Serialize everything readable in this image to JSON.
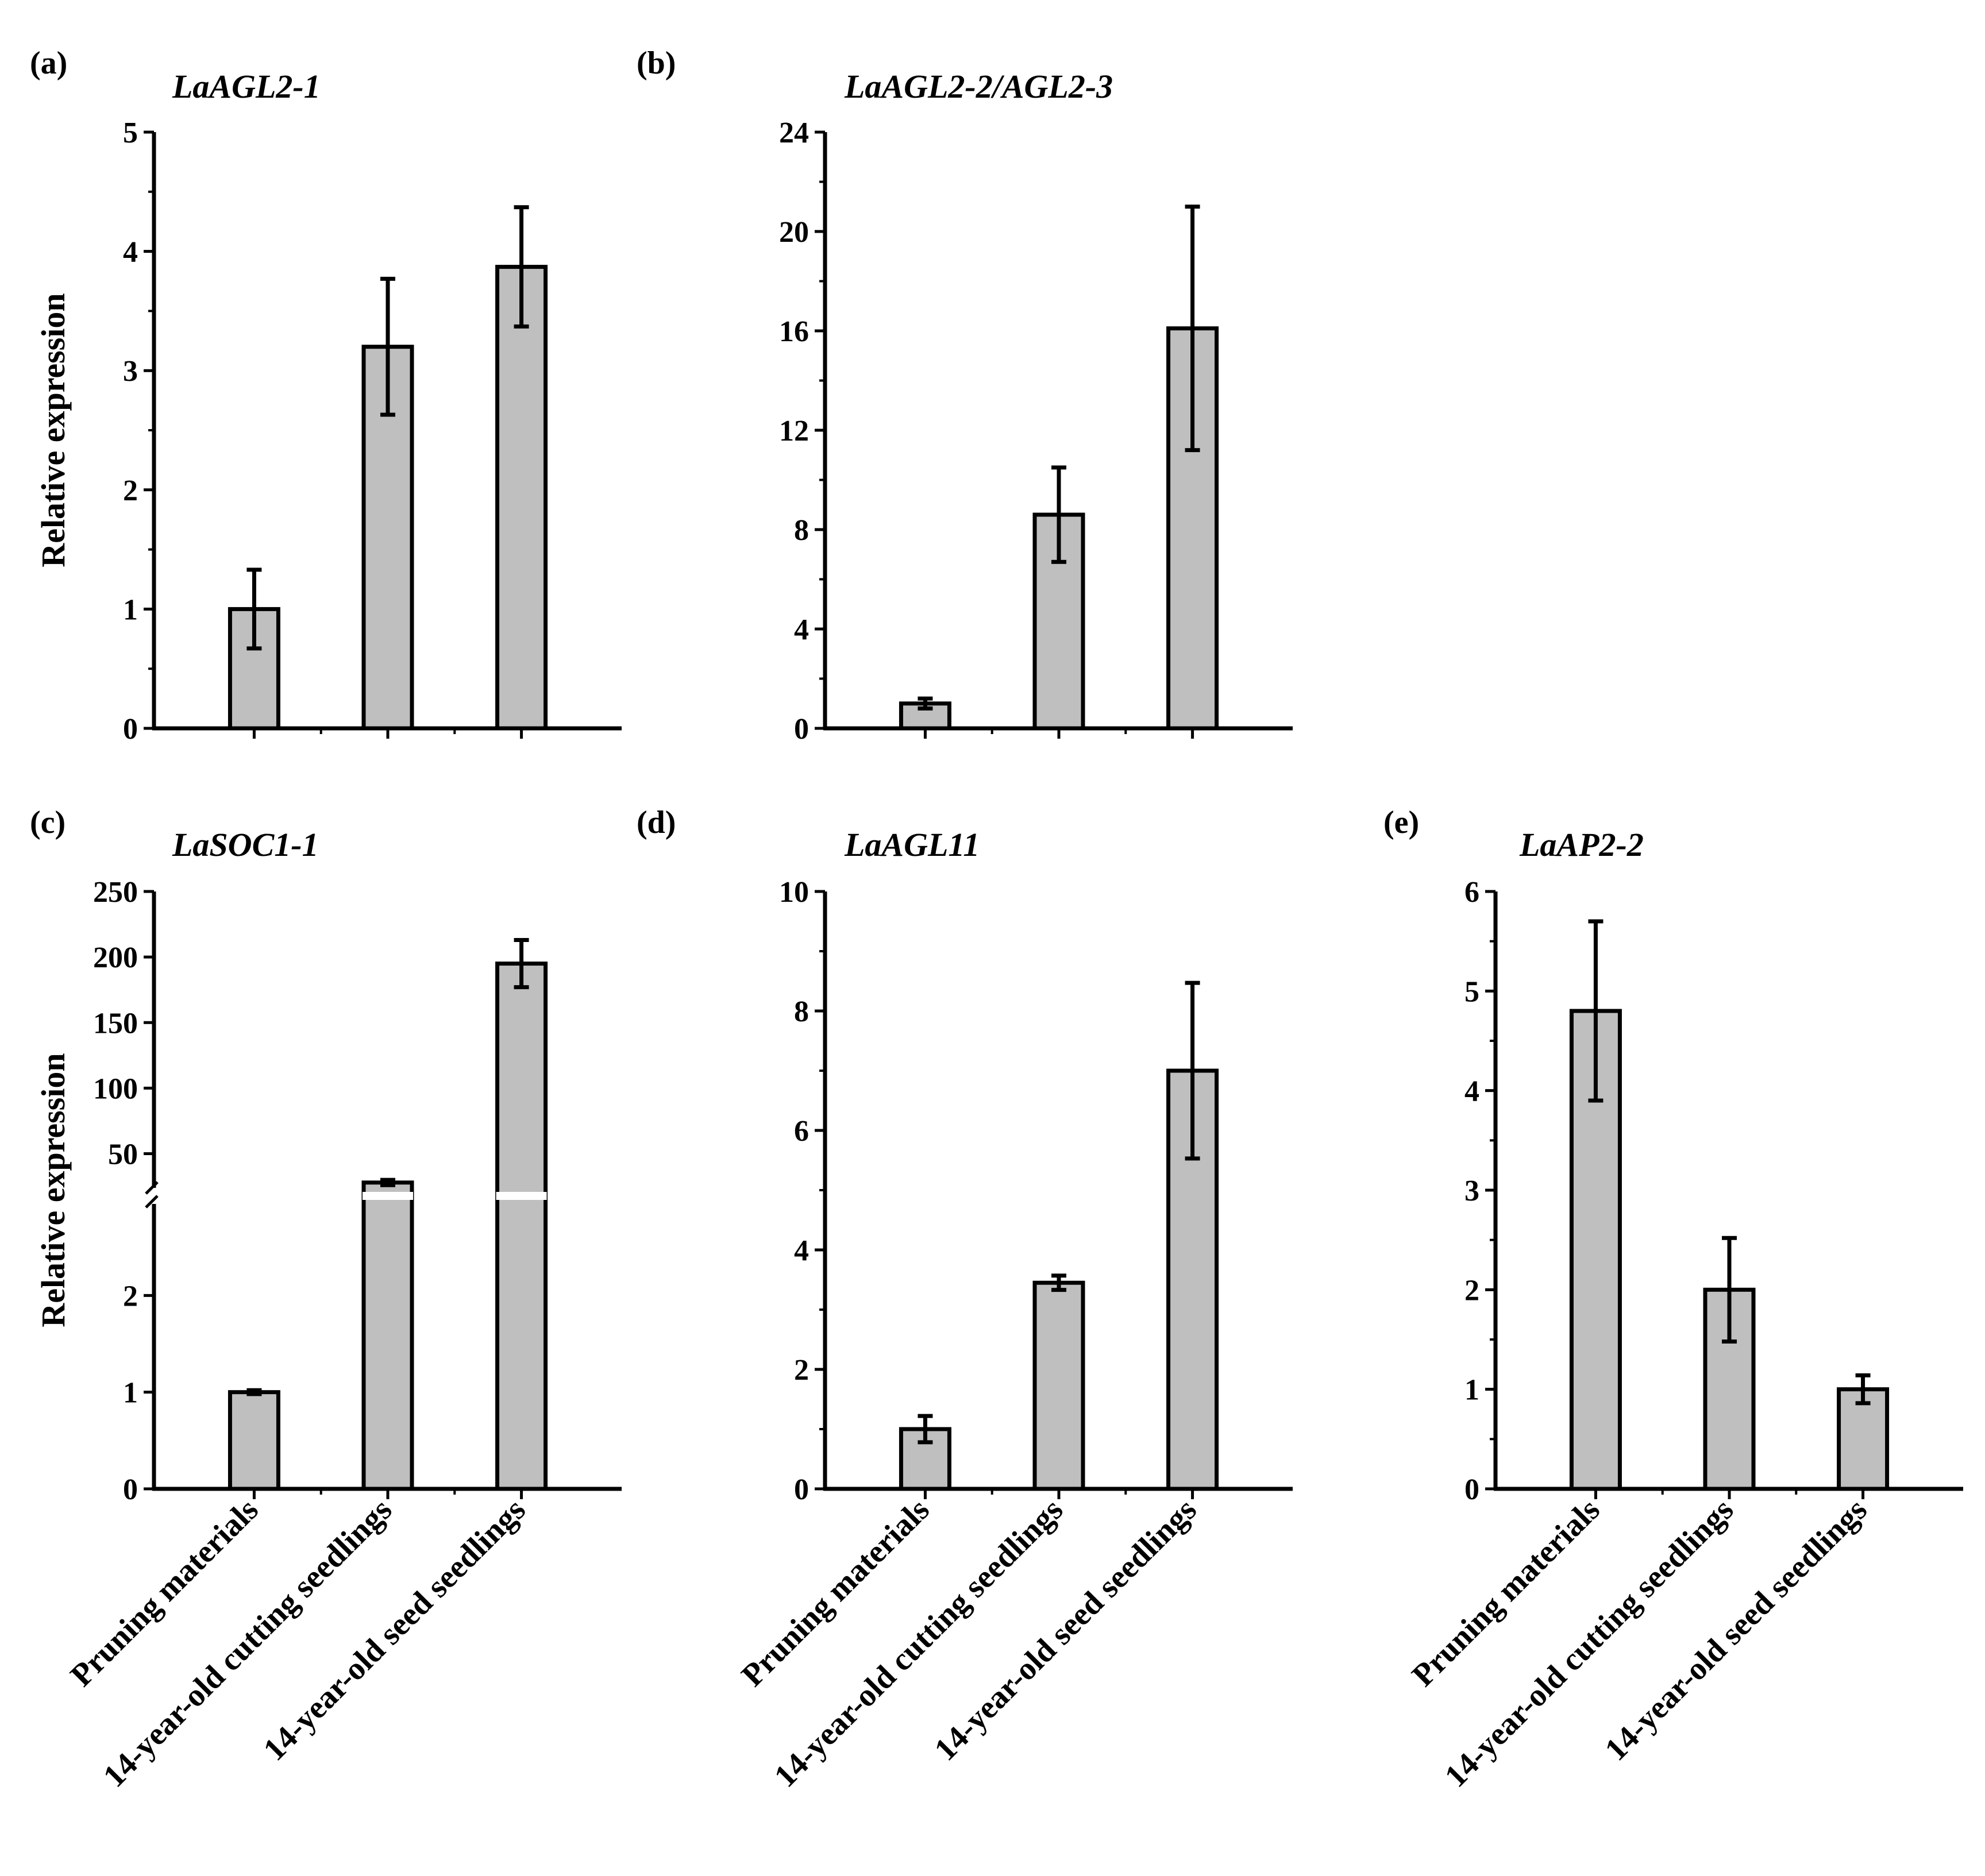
{
  "figure": {
    "ylabel": "Relative expression",
    "categories": [
      "Pruning materials",
      "14-year-old cutting seedlings",
      "14-year-old seed seedlings"
    ],
    "bar_color": "#bfbfbf",
    "line_color": "#000000"
  },
  "chart_data": [
    {
      "id": "a",
      "tag": "(a)",
      "title": "LaAGL2-1",
      "type": "bar",
      "ylabel": "Relative expression",
      "categories": [
        "Pruning materials",
        "14-year-old cutting seedlings",
        "14-year-old seed seedlings"
      ],
      "values": [
        1.0,
        3.2,
        3.87
      ],
      "errors": [
        0.33,
        0.57,
        0.5
      ],
      "ylim": [
        0,
        5
      ],
      "yticks": [
        0,
        1,
        2,
        3,
        4,
        5
      ]
    },
    {
      "id": "b",
      "tag": "(b)",
      "title": "LaAGL2-2/AGL2-3",
      "type": "bar",
      "ylabel": "",
      "categories": [
        "Pruning materials",
        "14-year-old cutting seedlings",
        "14-year-old seed seedlings"
      ],
      "values": [
        1.0,
        8.6,
        16.1
      ],
      "errors": [
        0.2,
        1.9,
        4.9
      ],
      "ylim": [
        0,
        24
      ],
      "yticks": [
        0,
        4,
        8,
        12,
        16,
        20,
        24
      ]
    },
    {
      "id": "c",
      "tag": "(c)",
      "title": "LaSOC1-1",
      "type": "bar",
      "ylabel": "Relative expression",
      "categories": [
        "Pruning materials",
        "14-year-old cutting seedlings",
        "14-year-old seed seedlings"
      ],
      "values": [
        1.0,
        28,
        195
      ],
      "errors": [
        0.02,
        2,
        18
      ],
      "broken_axis": {
        "lower": [
          0,
          3
        ],
        "upper": [
          20,
          250
        ]
      },
      "yticks_lower": [
        0,
        1,
        2
      ],
      "yticks_upper": [
        50,
        100,
        150,
        200,
        250
      ]
    },
    {
      "id": "d",
      "tag": "(d)",
      "title": "LaAGL11",
      "type": "bar",
      "ylabel": "",
      "categories": [
        "Pruning materials",
        "14-year-old cutting seedlings",
        "14-year-old seed seedlings"
      ],
      "values": [
        1.0,
        3.45,
        7.0
      ],
      "errors": [
        0.22,
        0.12,
        1.47
      ],
      "ylim": [
        0,
        10
      ],
      "yticks": [
        0,
        2,
        4,
        6,
        8,
        10
      ]
    },
    {
      "id": "e",
      "tag": "(e)",
      "title": "LaAP2-2",
      "type": "bar",
      "ylabel": "",
      "categories": [
        "Pruning materials",
        "14-year-old cutting seedlings",
        "14-year-old seed seedlings"
      ],
      "values": [
        4.8,
        2.0,
        1.0
      ],
      "errors": [
        0.9,
        0.52,
        0.14
      ],
      "ylim": [
        0,
        6
      ],
      "yticks": [
        0,
        1,
        2,
        3,
        4,
        5,
        6
      ]
    }
  ]
}
